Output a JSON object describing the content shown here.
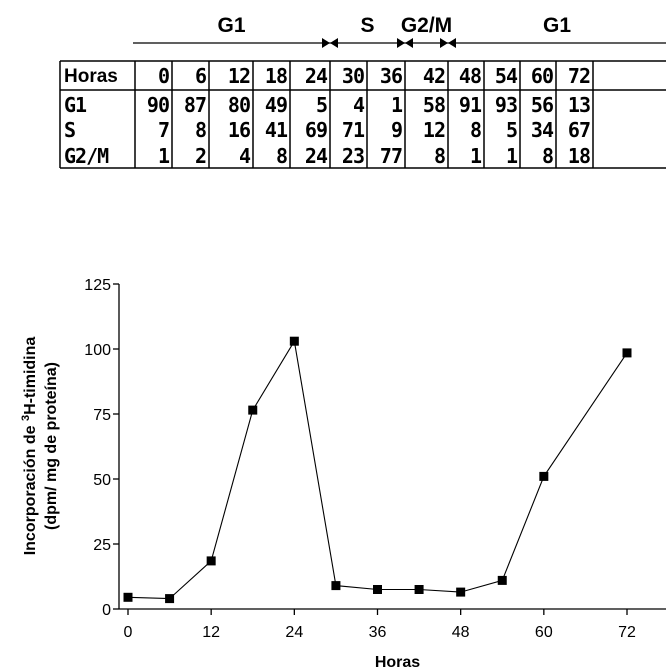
{
  "phase_bar": {
    "phases": [
      {
        "label": "G1",
        "start": 0,
        "end": 24
      },
      {
        "label": "S",
        "start": 24,
        "end": 36
      },
      {
        "label": "G2/M",
        "start": 36,
        "end": 42
      },
      {
        "label": "G1",
        "start": 42,
        "end": 72
      }
    ]
  },
  "table": {
    "header_label": "Horas",
    "hours": [
      "0",
      "6",
      "12",
      "18",
      "24",
      "30",
      "36",
      "42",
      "48",
      "54",
      "60",
      "72"
    ],
    "rows": [
      {
        "label": "G1",
        "values": [
          "90",
          "87",
          "80",
          "49",
          "5",
          "4",
          "1",
          "58",
          "91",
          "93",
          "56",
          "13"
        ]
      },
      {
        "label": "S",
        "values": [
          "7",
          "8",
          "16",
          "41",
          "69",
          "71",
          "9",
          "12",
          "8",
          "5",
          "34",
          "67"
        ]
      },
      {
        "label": "G2/M",
        "values": [
          "1",
          "2",
          "4",
          "8",
          "24",
          "23",
          "77",
          "8",
          "1",
          "1",
          "8",
          "18"
        ]
      }
    ]
  },
  "chart_data": {
    "type": "line",
    "title": "",
    "xlabel": "Horas",
    "ylabel_line1_pre": "Incorporación de ",
    "ylabel_line1_sup": "3",
    "ylabel_line1_post": "H-timidina",
    "ylabel_line2": "(dpm/ mg de proteína)",
    "xlim": [
      0,
      72
    ],
    "ylim": [
      0,
      125
    ],
    "xticks": [
      0,
      12,
      24,
      36,
      48,
      60,
      72
    ],
    "yticks": [
      0,
      25,
      50,
      75,
      100,
      125
    ],
    "grid": false,
    "marker": "square",
    "series": [
      {
        "x": [
          0,
          6,
          12,
          18,
          24,
          30,
          36,
          42,
          48,
          54,
          60,
          72
        ],
        "y": [
          4.5,
          4,
          18.5,
          76.5,
          103,
          9,
          7.5,
          7.5,
          6.5,
          11,
          51,
          98.5
        ]
      }
    ]
  }
}
